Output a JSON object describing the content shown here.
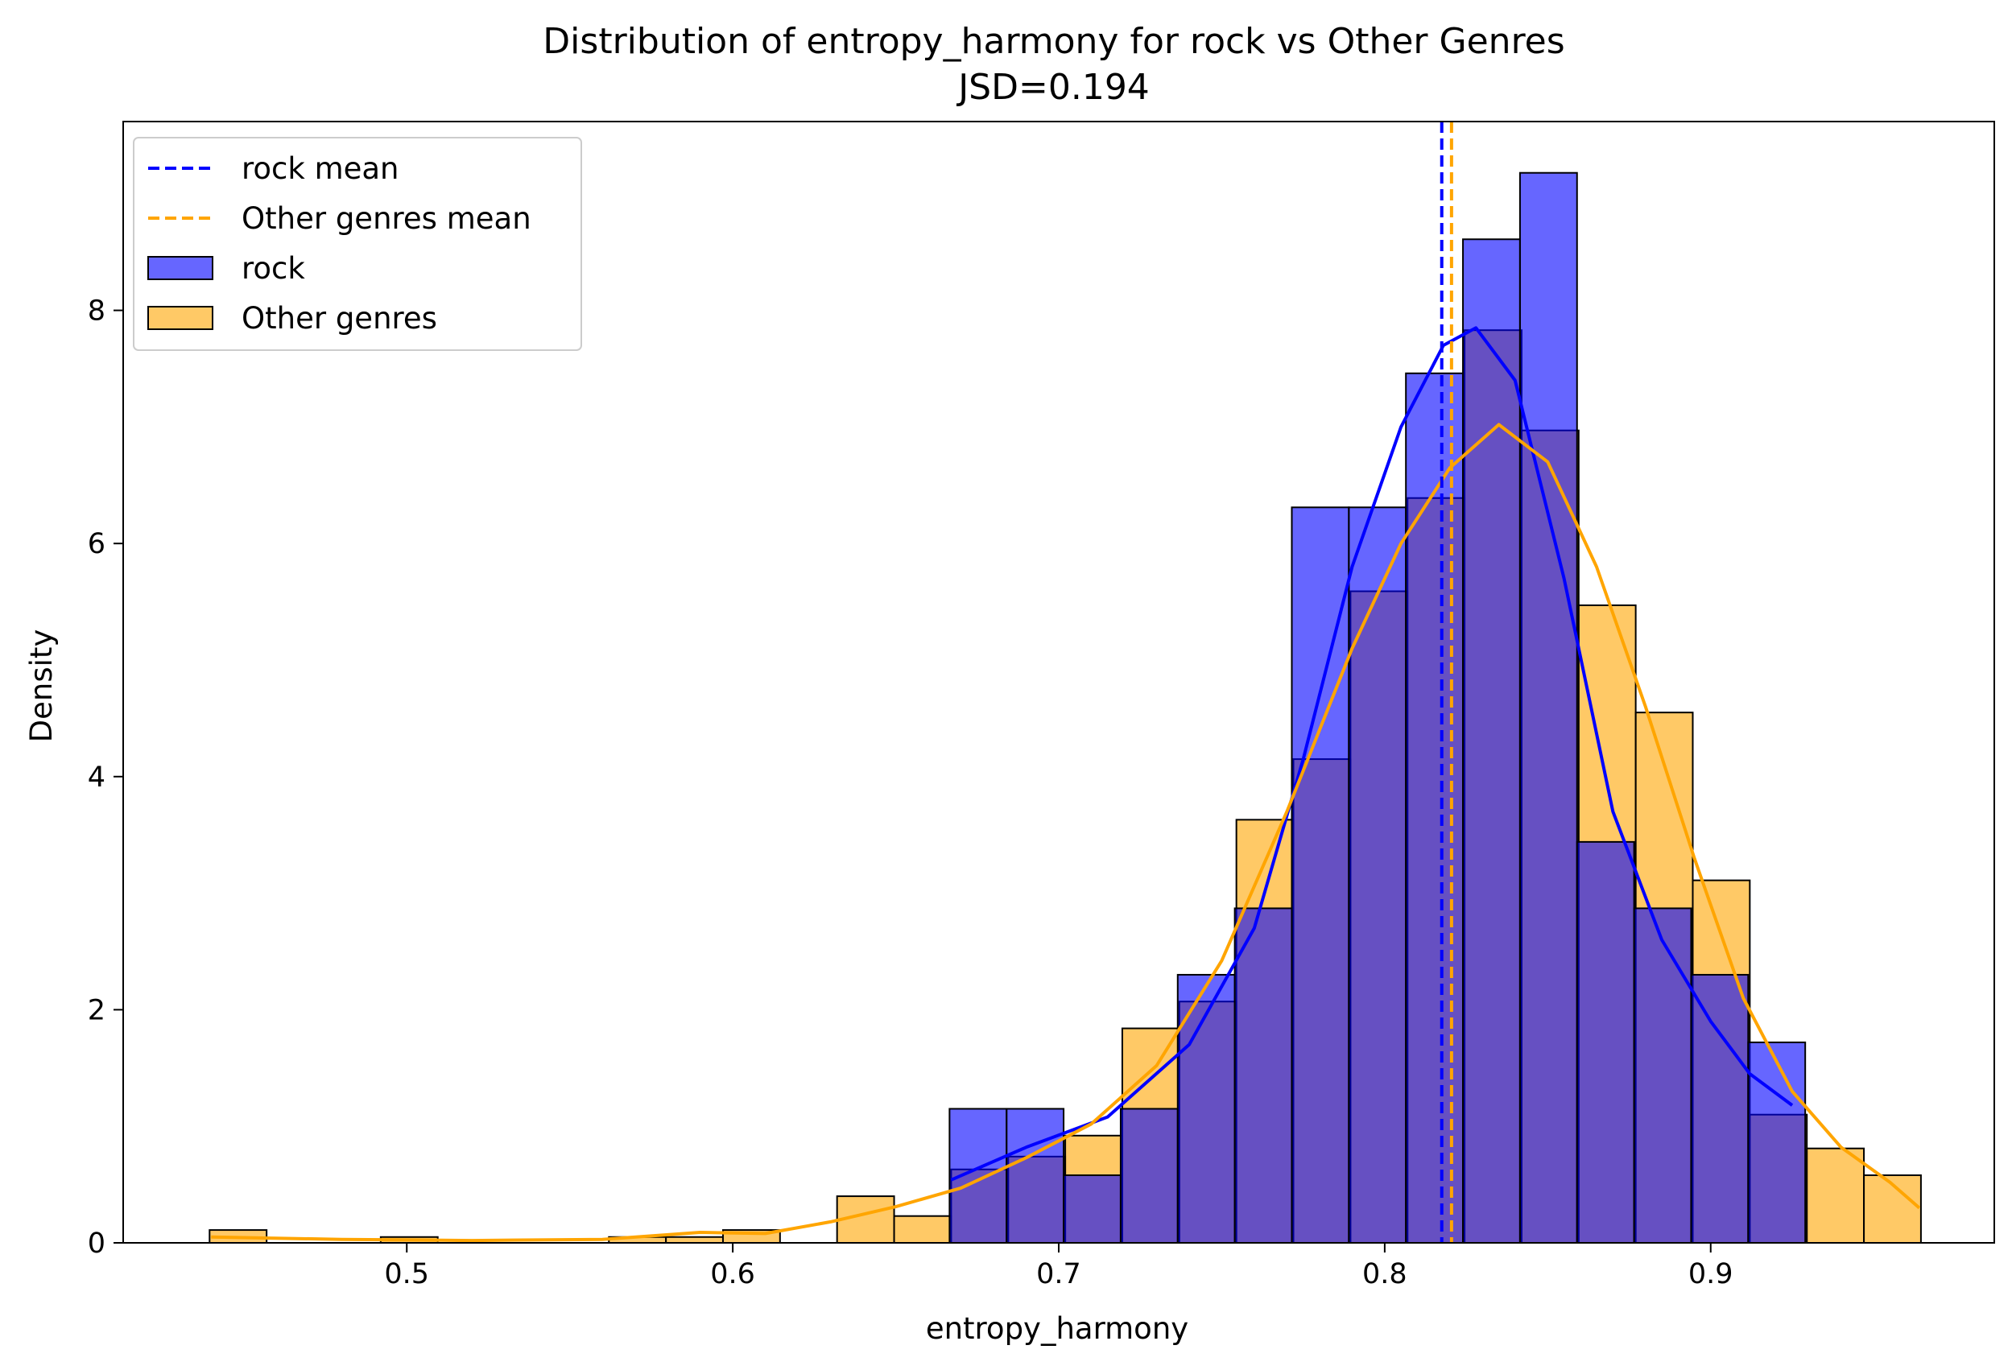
{
  "chart_data": {
    "type": "histogram",
    "title": "Distribution of entropy_harmony for rock vs Other Genres",
    "subtitle": "JSD=0.194",
    "xlabel": "entropy_harmony",
    "ylabel": "Density",
    "xlim": [
      0.413,
      0.987
    ],
    "ylim": [
      0,
      9.62
    ],
    "xticks": [
      0.5,
      0.6,
      0.7,
      0.8,
      0.9
    ],
    "xtick_labels": [
      "0.5",
      "0.6",
      "0.7",
      "0.8",
      "0.9"
    ],
    "yticks": [
      0,
      2,
      4,
      6,
      8
    ],
    "ytick_labels": [
      "0",
      "2",
      "4",
      "6",
      "8"
    ],
    "grid": false,
    "legend_position": "top-left",
    "legend": [
      {
        "label": "rock mean",
        "kind": "dashed-line",
        "series": "rock"
      },
      {
        "label": "Other genres mean",
        "kind": "dashed-line",
        "series": "other"
      },
      {
        "label": "rock",
        "kind": "patch",
        "series": "rock"
      },
      {
        "label": "Other genres",
        "kind": "patch",
        "series": "other"
      }
    ],
    "series": [
      {
        "name": "rock",
        "color": "#0000ff",
        "fill": "#6666ff",
        "mean": 0.8175,
        "bins": [
          {
            "x0": 0.6665,
            "x1": 0.684,
            "density": 1.15
          },
          {
            "x0": 0.684,
            "x1": 0.7015,
            "density": 1.15
          },
          {
            "x0": 0.7015,
            "x1": 0.719,
            "density": 0.58
          },
          {
            "x0": 0.719,
            "x1": 0.7365,
            "density": 1.15
          },
          {
            "x0": 0.7365,
            "x1": 0.754,
            "density": 2.3
          },
          {
            "x0": 0.754,
            "x1": 0.7715,
            "density": 2.87
          },
          {
            "x0": 0.7715,
            "x1": 0.789,
            "density": 6.31
          },
          {
            "x0": 0.789,
            "x1": 0.8065,
            "density": 6.31
          },
          {
            "x0": 0.8065,
            "x1": 0.824,
            "density": 7.46
          },
          {
            "x0": 0.824,
            "x1": 0.8415,
            "density": 8.61
          },
          {
            "x0": 0.8415,
            "x1": 0.859,
            "density": 9.18
          },
          {
            "x0": 0.859,
            "x1": 0.8765,
            "density": 3.44
          },
          {
            "x0": 0.8765,
            "x1": 0.894,
            "density": 2.87
          },
          {
            "x0": 0.894,
            "x1": 0.9115,
            "density": 2.3
          },
          {
            "x0": 0.9115,
            "x1": 0.929,
            "density": 1.72
          }
        ],
        "kde": [
          [
            0.667,
            0.54
          ],
          [
            0.69,
            0.82
          ],
          [
            0.715,
            1.08
          ],
          [
            0.74,
            1.7
          ],
          [
            0.76,
            2.7
          ],
          [
            0.775,
            4.15
          ],
          [
            0.79,
            5.8
          ],
          [
            0.805,
            7.0
          ],
          [
            0.818,
            7.7
          ],
          [
            0.828,
            7.85
          ],
          [
            0.84,
            7.4
          ],
          [
            0.855,
            5.7
          ],
          [
            0.87,
            3.7
          ],
          [
            0.885,
            2.6
          ],
          [
            0.9,
            1.9
          ],
          [
            0.912,
            1.45
          ],
          [
            0.925,
            1.18
          ]
        ]
      },
      {
        "name": "other",
        "color": "#ffa500",
        "fill": "#ffc966",
        "mean": 0.8205,
        "bins": [
          {
            "x0": 0.4395,
            "x1": 0.457,
            "density": 0.11
          },
          {
            "x0": 0.457,
            "x1": 0.4745,
            "density": 0.0
          },
          {
            "x0": 0.4745,
            "x1": 0.492,
            "density": 0.0
          },
          {
            "x0": 0.492,
            "x1": 0.5095,
            "density": 0.05
          },
          {
            "x0": 0.5095,
            "x1": 0.527,
            "density": 0.0
          },
          {
            "x0": 0.527,
            "x1": 0.5445,
            "density": 0.0
          },
          {
            "x0": 0.5445,
            "x1": 0.562,
            "density": 0.0
          },
          {
            "x0": 0.562,
            "x1": 0.5795,
            "density": 0.05
          },
          {
            "x0": 0.5795,
            "x1": 0.597,
            "density": 0.05
          },
          {
            "x0": 0.597,
            "x1": 0.6145,
            "density": 0.11
          },
          {
            "x0": 0.6145,
            "x1": 0.632,
            "density": 0.0
          },
          {
            "x0": 0.632,
            "x1": 0.6495,
            "density": 0.4
          },
          {
            "x0": 0.6495,
            "x1": 0.667,
            "density": 0.23
          },
          {
            "x0": 0.667,
            "x1": 0.6845,
            "density": 0.63
          },
          {
            "x0": 0.6845,
            "x1": 0.702,
            "density": 0.74
          },
          {
            "x0": 0.702,
            "x1": 0.7195,
            "density": 0.92
          },
          {
            "x0": 0.7195,
            "x1": 0.737,
            "density": 1.84
          },
          {
            "x0": 0.737,
            "x1": 0.7545,
            "density": 2.07
          },
          {
            "x0": 0.7545,
            "x1": 0.772,
            "density": 3.63
          },
          {
            "x0": 0.772,
            "x1": 0.7895,
            "density": 4.15
          },
          {
            "x0": 0.7895,
            "x1": 0.807,
            "density": 5.59
          },
          {
            "x0": 0.807,
            "x1": 0.8245,
            "density": 6.39
          },
          {
            "x0": 0.8245,
            "x1": 0.842,
            "density": 7.83
          },
          {
            "x0": 0.842,
            "x1": 0.8595,
            "density": 6.97
          },
          {
            "x0": 0.8595,
            "x1": 0.877,
            "density": 5.47
          },
          {
            "x0": 0.877,
            "x1": 0.8945,
            "density": 4.55
          },
          {
            "x0": 0.8945,
            "x1": 0.912,
            "density": 3.11
          },
          {
            "x0": 0.912,
            "x1": 0.9295,
            "density": 1.1
          },
          {
            "x0": 0.9295,
            "x1": 0.947,
            "density": 0.81
          },
          {
            "x0": 0.947,
            "x1": 0.9645,
            "density": 0.58
          }
        ],
        "kde": [
          [
            0.44,
            0.05
          ],
          [
            0.48,
            0.03
          ],
          [
            0.52,
            0.02
          ],
          [
            0.56,
            0.03
          ],
          [
            0.59,
            0.09
          ],
          [
            0.61,
            0.08
          ],
          [
            0.63,
            0.18
          ],
          [
            0.65,
            0.31
          ],
          [
            0.67,
            0.47
          ],
          [
            0.69,
            0.73
          ],
          [
            0.71,
            1.02
          ],
          [
            0.73,
            1.52
          ],
          [
            0.75,
            2.42
          ],
          [
            0.77,
            3.7
          ],
          [
            0.79,
            5.1
          ],
          [
            0.805,
            6.0
          ],
          [
            0.82,
            6.65
          ],
          [
            0.835,
            7.02
          ],
          [
            0.85,
            6.7
          ],
          [
            0.865,
            5.8
          ],
          [
            0.88,
            4.6
          ],
          [
            0.895,
            3.3
          ],
          [
            0.91,
            2.1
          ],
          [
            0.925,
            1.3
          ],
          [
            0.94,
            0.82
          ],
          [
            0.955,
            0.52
          ],
          [
            0.964,
            0.3
          ]
        ]
      }
    ]
  }
}
